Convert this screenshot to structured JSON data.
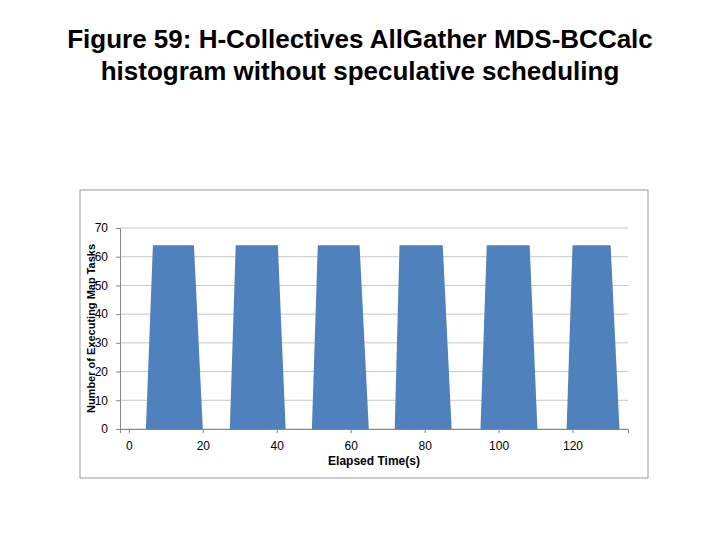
{
  "chart_data": {
    "type": "area",
    "title": "Figure 59: H-Collectives AllGather MDS-BCCalc histogram without speculative scheduling",
    "x_label": "Elapsed Time(s)",
    "y_label": "Number of Executing Map Tasks",
    "x": [
      0,
      4.6,
      6.5,
      17.6,
      20.0,
      27.3,
      28.9,
      40.3,
      42.4,
      49.5,
      51.1,
      62.4,
      64.9,
      71.9,
      73.2,
      84.9,
      87.3,
      95.1,
      96.8,
      108.4,
      110.5,
      118.4,
      120.0,
      130.3,
      132.7,
      135
    ],
    "values": [
      0,
      0,
      64,
      64,
      0,
      0,
      64,
      64,
      0,
      0,
      64,
      64,
      0,
      0,
      64,
      64,
      0,
      0,
      64,
      64,
      0,
      0,
      64,
      64,
      0,
      0
    ],
    "color": "#4f81bd",
    "xlim": [
      -2.4,
      135
    ],
    "xticks": [
      0,
      20,
      40,
      60,
      80,
      100,
      120
    ],
    "ylim": [
      0,
      70
    ],
    "yticks": [
      0,
      10,
      20,
      30,
      40,
      50,
      60,
      70
    ],
    "grid": true
  }
}
